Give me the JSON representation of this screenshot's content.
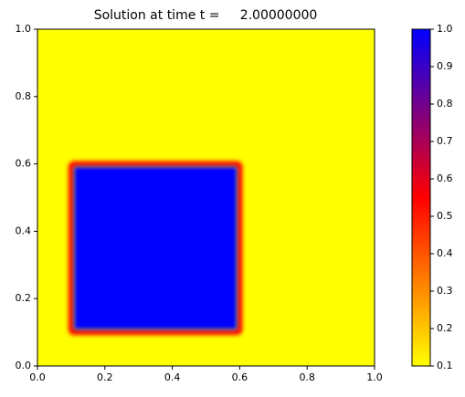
{
  "chart_data": {
    "type": "heatmap",
    "title": "Solution at time t =     2.00000000",
    "background_value": 0.1,
    "regions": [
      {
        "xlim": [
          0.1,
          0.6
        ],
        "ylim": [
          0.1,
          0.6
        ],
        "value": 1.0
      }
    ],
    "xlim": [
      0,
      1
    ],
    "ylim": [
      0,
      1
    ],
    "xticks": [
      {
        "value": 0,
        "label": "0.0"
      },
      0.2,
      0.4,
      0.6,
      0.8,
      {
        "value": 1,
        "label": "1.0"
      }
    ],
    "yticks": [
      {
        "value": 0,
        "label": "0.0"
      },
      0.2,
      0.4,
      0.6,
      0.8,
      {
        "value": 1,
        "label": "1.0"
      }
    ],
    "colormap": {
      "values": [
        0.1,
        0.55,
        1.0
      ],
      "colors": [
        "#ffff00",
        "#ff0000",
        "#0000ff"
      ]
    },
    "clim": [
      0.1,
      1
    ],
    "cticks": [
      0.1,
      0.2,
      0.3,
      0.4,
      0.5,
      0.6,
      0.7,
      0.8,
      0.9,
      {
        "value": 1,
        "label": "1.0"
      }
    ]
  }
}
